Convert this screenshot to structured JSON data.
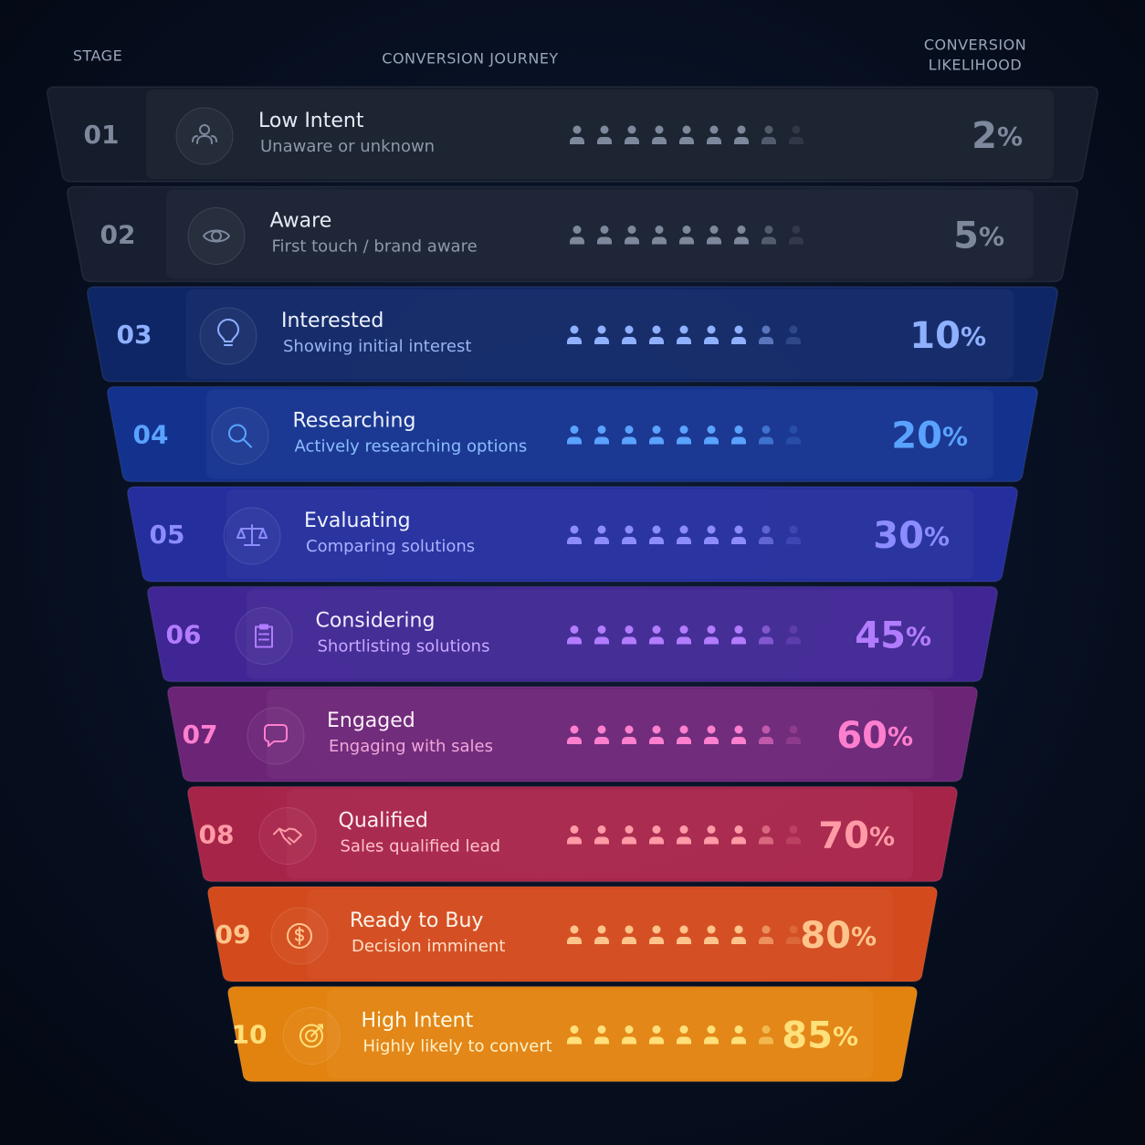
{
  "header": {
    "stage": "STAGE",
    "journey": "CONVERSION JOURNEY",
    "likelihood": [
      "CONVERSION",
      "LIKELIHOOD"
    ]
  },
  "stages": [
    {
      "number": "01",
      "title": "Low Intent",
      "subtitle": "Unaware or unknown",
      "value": 2,
      "unit": "%"
    },
    {
      "number": "02",
      "title": "Aware",
      "subtitle": "First touch / brand aware",
      "value": 5,
      "unit": "%"
    },
    {
      "number": "03",
      "title": "Interested",
      "subtitle": "Showing initial interest",
      "value": 10,
      "unit": "%"
    },
    {
      "number": "04",
      "title": "Researching",
      "subtitle": "Actively researching options",
      "value": 20,
      "unit": "%"
    },
    {
      "number": "05",
      "title": "Evaluating",
      "subtitle": "Comparing solutions",
      "value": 30,
      "unit": "%"
    },
    {
      "number": "06",
      "title": "Considering",
      "subtitle": "Shortlisting solutions",
      "value": 45,
      "unit": "%"
    },
    {
      "number": "07",
      "title": "Engaged",
      "subtitle": "Engaging with sales",
      "value": 60,
      "unit": "%"
    },
    {
      "number": "08",
      "title": "Qualified",
      "subtitle": "Sales qualified lead",
      "value": 70,
      "unit": "%"
    },
    {
      "number": "09",
      "title": "Ready to Buy",
      "subtitle": "Decision imminent",
      "value": 80,
      "unit": "%"
    },
    {
      "number": "10",
      "title": "High Intent",
      "subtitle": "Highly likely to convert",
      "value": 85,
      "unit": "%"
    }
  ]
}
